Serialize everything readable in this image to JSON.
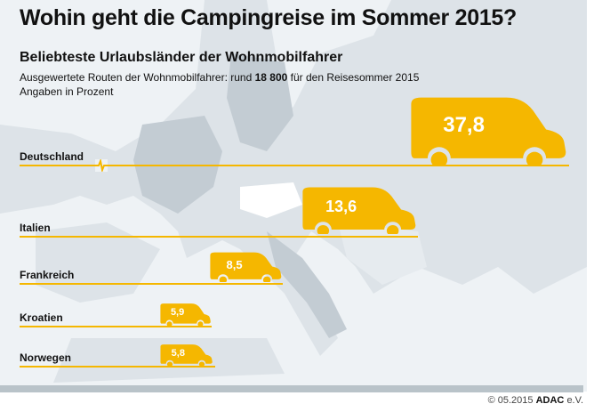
{
  "title": "Wohin geht die Campingreise im Sommer 2015?",
  "subtitle": "Beliebteste Urlaubsländer der Wohnmobilfahrer",
  "note_prefix": "Ausgewertete Routen der Wohnmobilfahrer: rund ",
  "note_bold": "18 800",
  "note_suffix": " für den Reisesommer 2015",
  "note2": "Angaben in Prozent",
  "credit": {
    "date": "© 05.2015",
    "brand": "ADAC",
    "suffix": "e.V."
  },
  "colors": {
    "accent": "#f5b700",
    "map_land": "#dde3e8",
    "map_sea": "#eef2f5"
  },
  "chart_data": {
    "type": "bar",
    "unit": "Prozent",
    "categories": [
      "Deutschland",
      "Italien",
      "Frankreich",
      "Kroatien",
      "Norwegen"
    ],
    "values": [
      37.8,
      13.6,
      8.5,
      5.9,
      5.8
    ],
    "value_labels": [
      "37,8",
      "13,6",
      "8,5",
      "5,9",
      "5,8"
    ],
    "axis_break_on": "Deutschland"
  }
}
